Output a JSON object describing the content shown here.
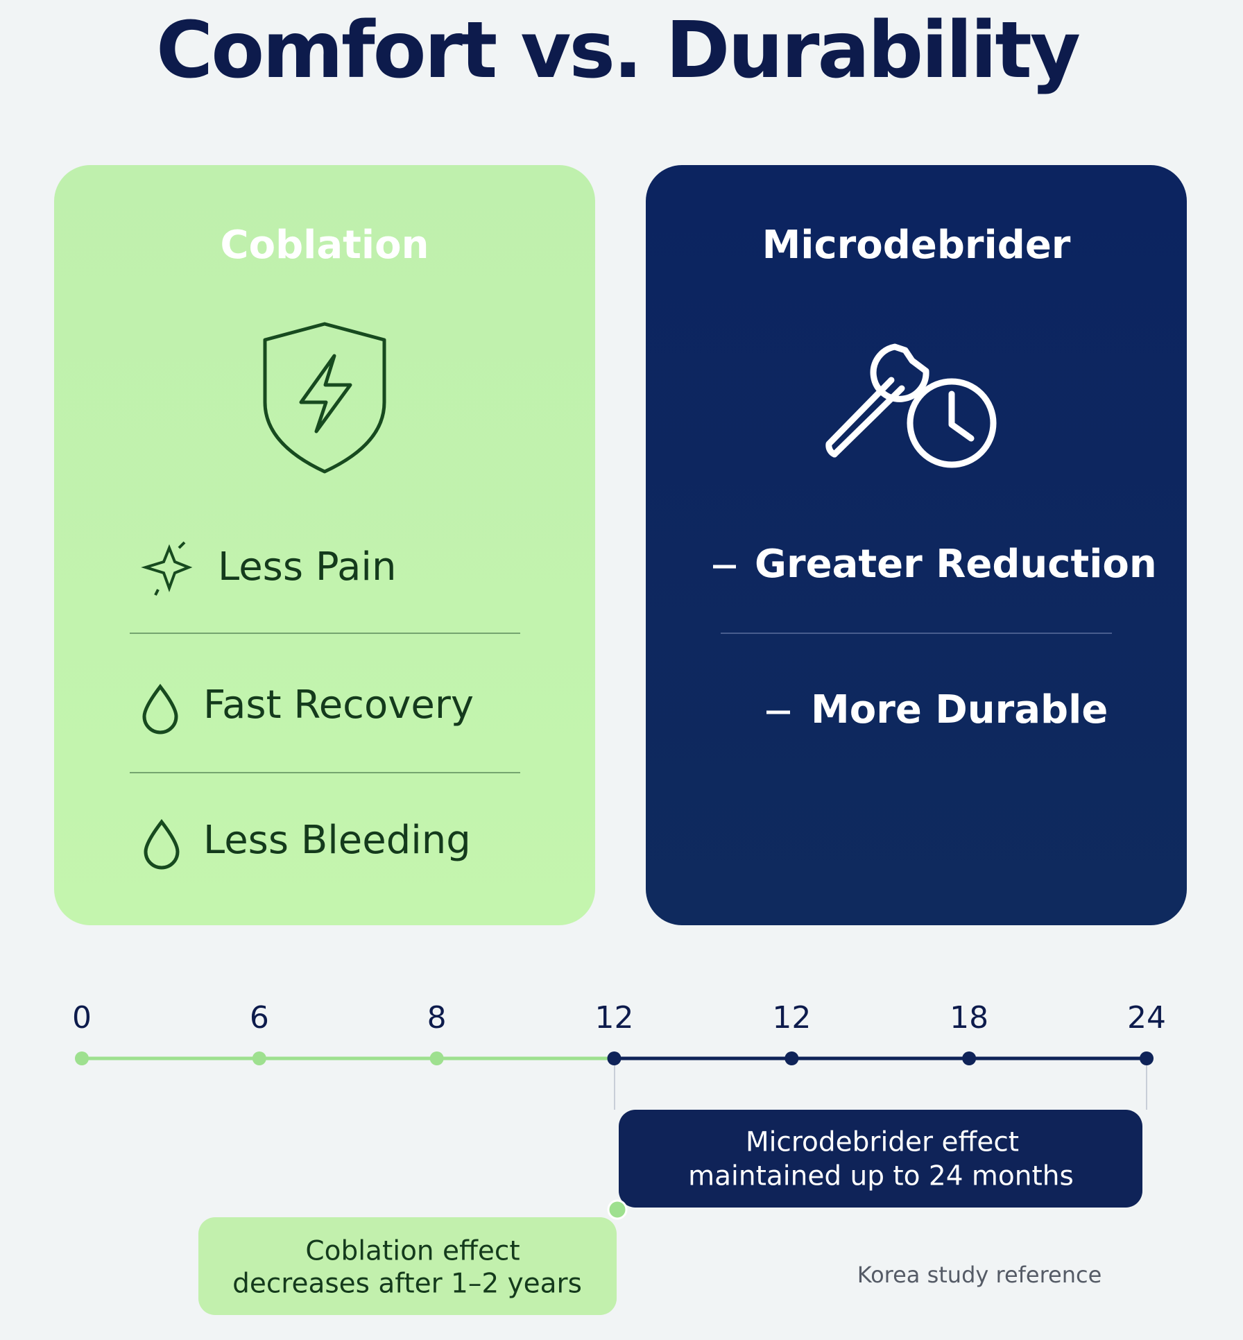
{
  "header": {
    "title": "Comfort vs. Durability"
  },
  "cards": [
    {
      "title": "Coblation",
      "items": [
        "Less Pain",
        "Fast Recovery",
        "Less Bleeding"
      ]
    },
    {
      "title": "Microdebrider",
      "items": [
        "Greater Reduction",
        "More Durable"
      ]
    }
  ],
  "timeline": {
    "ticks": [
      "0",
      "6",
      "8",
      "12",
      "12",
      "18",
      "24"
    ]
  },
  "callouts": [
    {
      "lines": [
        "Microdebrider effect",
        "maintained up to 24 months"
      ]
    },
    {
      "lines": [
        "Coblation effect",
        "decreases after 1–2 years"
      ]
    }
  ],
  "footnote": "Korea study reference"
}
